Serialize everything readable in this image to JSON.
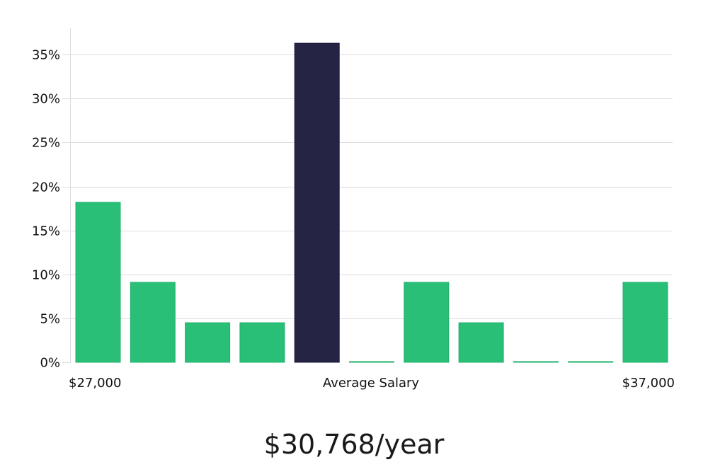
{
  "chart_data": {
    "type": "bar",
    "title": "",
    "xlabel": "Average Salary",
    "ylabel": "",
    "ylim": [
      0,
      38
    ],
    "y_ticks": [
      "0%",
      "5%",
      "10%",
      "15%",
      "20%",
      "25%",
      "30%",
      "35%"
    ],
    "y_tick_values": [
      0,
      5,
      10,
      15,
      20,
      25,
      30,
      35
    ],
    "x_labels": {
      "left": "$27,000",
      "center": "Average Salary",
      "right": "$37,000"
    },
    "values": [
      18.2,
      9.1,
      4.5,
      4.5,
      36.3,
      0,
      9.1,
      4.5,
      0,
      0,
      9.1
    ],
    "highlight_index": 4,
    "grid": true
  },
  "colors": {
    "bar": "#2abf77",
    "bar_edge": "#21b06b",
    "highlight": "#262444",
    "highlight_edge": "#17163a",
    "grid": "#dcdcdc",
    "axis": "#dcdcdc"
  },
  "salary_text": "$30,768/year"
}
